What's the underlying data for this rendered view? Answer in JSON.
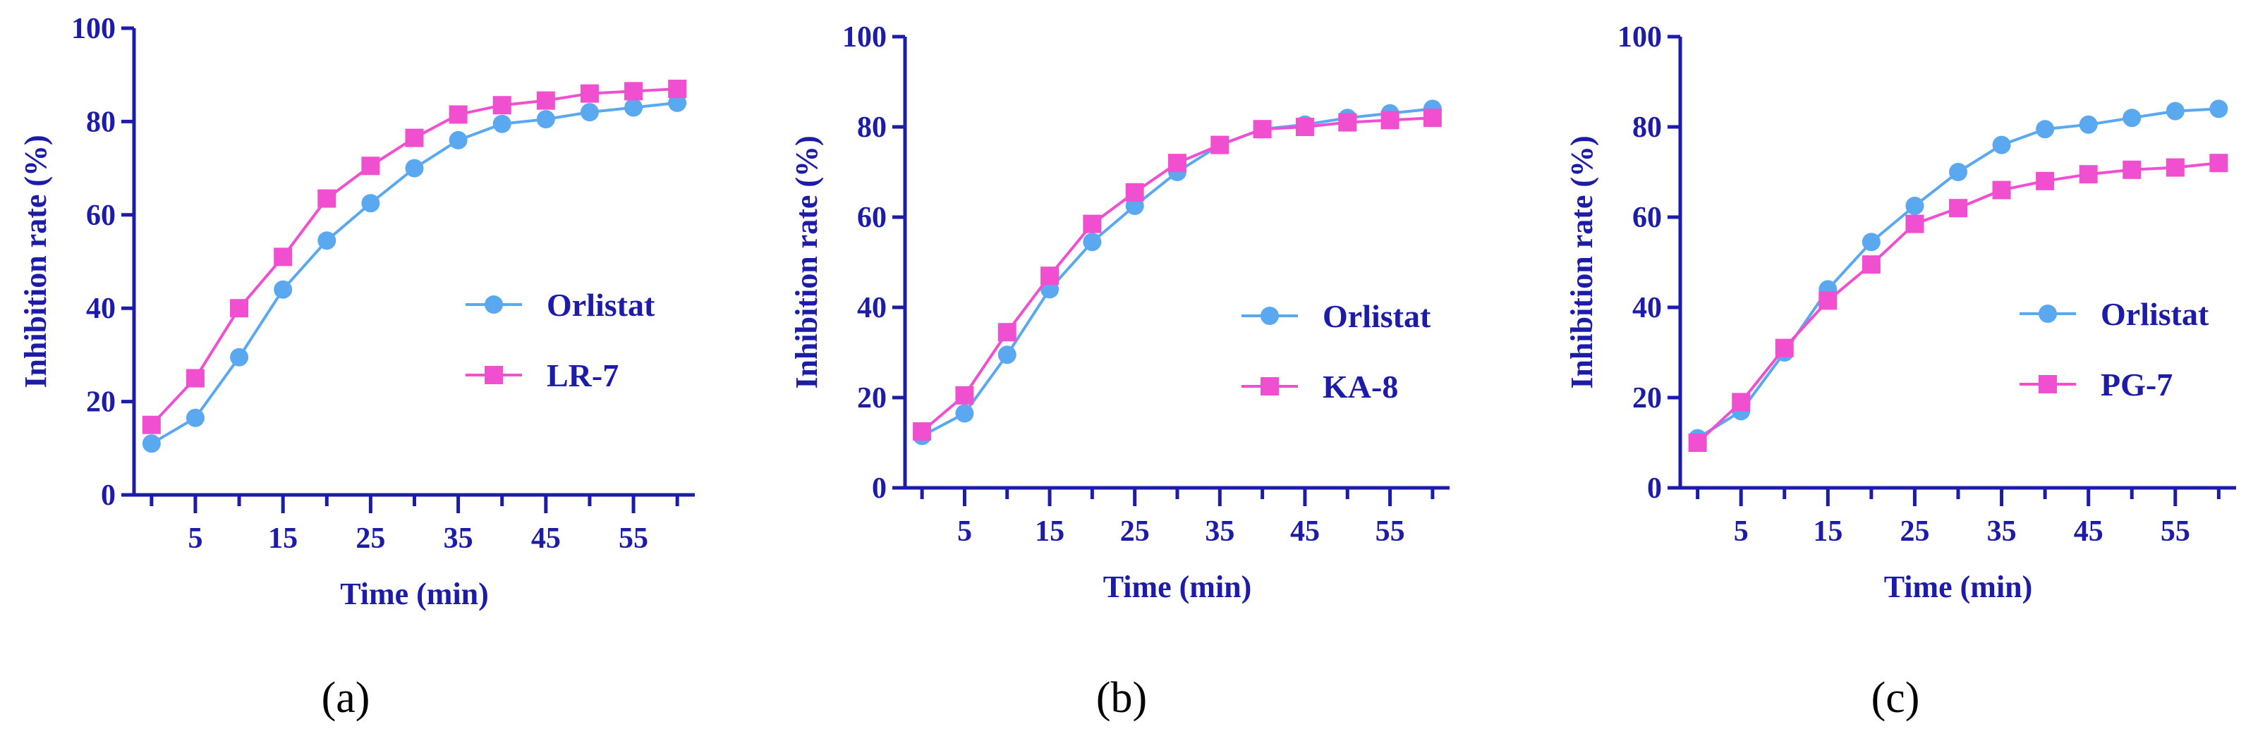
{
  "colors": {
    "axis": "#1c1ca8",
    "orlistat": "#5aa9f0",
    "sample": "#f04fcf"
  },
  "chart_data": [
    {
      "type": "line",
      "caption": "(a)",
      "xlabel": "Time (min)",
      "ylabel": "Inhibition rate (%)",
      "ylim": [
        0,
        100
      ],
      "yticks": [
        "0",
        "20",
        "40",
        "60",
        "80",
        "100"
      ],
      "xticks": [
        "5",
        "15",
        "25",
        "35",
        "45",
        "55"
      ],
      "xlim": [
        -2,
        62
      ],
      "series": [
        {
          "name": "Orlistat",
          "marker": "circle",
          "x": [
            0,
            5,
            10,
            15,
            20,
            25,
            30,
            35,
            40,
            45,
            50,
            55,
            60
          ],
          "values": [
            11,
            16.5,
            29.5,
            44,
            54.5,
            62.5,
            70,
            76,
            79.5,
            80.5,
            82,
            83,
            84
          ]
        },
        {
          "name": "LR-7",
          "marker": "square",
          "x": [
            0,
            5,
            10,
            15,
            20,
            25,
            30,
            35,
            40,
            45,
            50,
            55,
            60
          ],
          "values": [
            15,
            25,
            40,
            51,
            63.5,
            70.5,
            76.5,
            81.5,
            83.5,
            84.5,
            86,
            86.5,
            87
          ]
        }
      ]
    },
    {
      "type": "line",
      "caption": "(b)",
      "xlabel": "Time (min)",
      "ylabel": "Inhibition rate (%)",
      "ylim": [
        0,
        100
      ],
      "yticks": [
        "0",
        "20",
        "40",
        "60",
        "80",
        "100"
      ],
      "xticks": [
        "5",
        "15",
        "25",
        "35",
        "45",
        "55"
      ],
      "xlim": [
        -2,
        62
      ],
      "series": [
        {
          "name": "Orlistat",
          "marker": "circle",
          "x": [
            0,
            5,
            10,
            15,
            20,
            25,
            30,
            35,
            40,
            45,
            50,
            55,
            60
          ],
          "values": [
            11.5,
            16.5,
            29.5,
            44,
            54.5,
            62.5,
            70,
            76,
            79.5,
            80.5,
            82,
            83,
            84
          ]
        },
        {
          "name": "KA-8",
          "marker": "square",
          "x": [
            0,
            5,
            10,
            15,
            20,
            25,
            30,
            35,
            40,
            45,
            50,
            55,
            60
          ],
          "values": [
            12.5,
            20.5,
            34.5,
            47,
            58.5,
            65.5,
            72,
            76,
            79.5,
            80,
            81,
            81.5,
            82
          ]
        }
      ]
    },
    {
      "type": "line",
      "caption": "(c)",
      "xlabel": "Time (min)",
      "ylabel": "Inhibition rate (%)",
      "ylim": [
        0,
        100
      ],
      "yticks": [
        "0",
        "20",
        "40",
        "60",
        "80",
        "100"
      ],
      "xticks": [
        "5",
        "15",
        "25",
        "35",
        "45",
        "55"
      ],
      "xlim": [
        -2,
        62
      ],
      "series": [
        {
          "name": "Orlistat",
          "marker": "circle",
          "x": [
            0,
            5,
            10,
            15,
            20,
            25,
            30,
            35,
            40,
            45,
            50,
            55,
            60
          ],
          "values": [
            11,
            17,
            30,
            44,
            54.5,
            62.5,
            70,
            76,
            79.5,
            80.5,
            82,
            83.5,
            84
          ]
        },
        {
          "name": "PG-7",
          "marker": "square",
          "x": [
            0,
            5,
            10,
            15,
            20,
            25,
            30,
            35,
            40,
            45,
            50,
            55,
            60
          ],
          "values": [
            10,
            19,
            31,
            41.5,
            49.5,
            58.5,
            62,
            66,
            68,
            69.5,
            70.5,
            71,
            72
          ]
        }
      ]
    }
  ]
}
